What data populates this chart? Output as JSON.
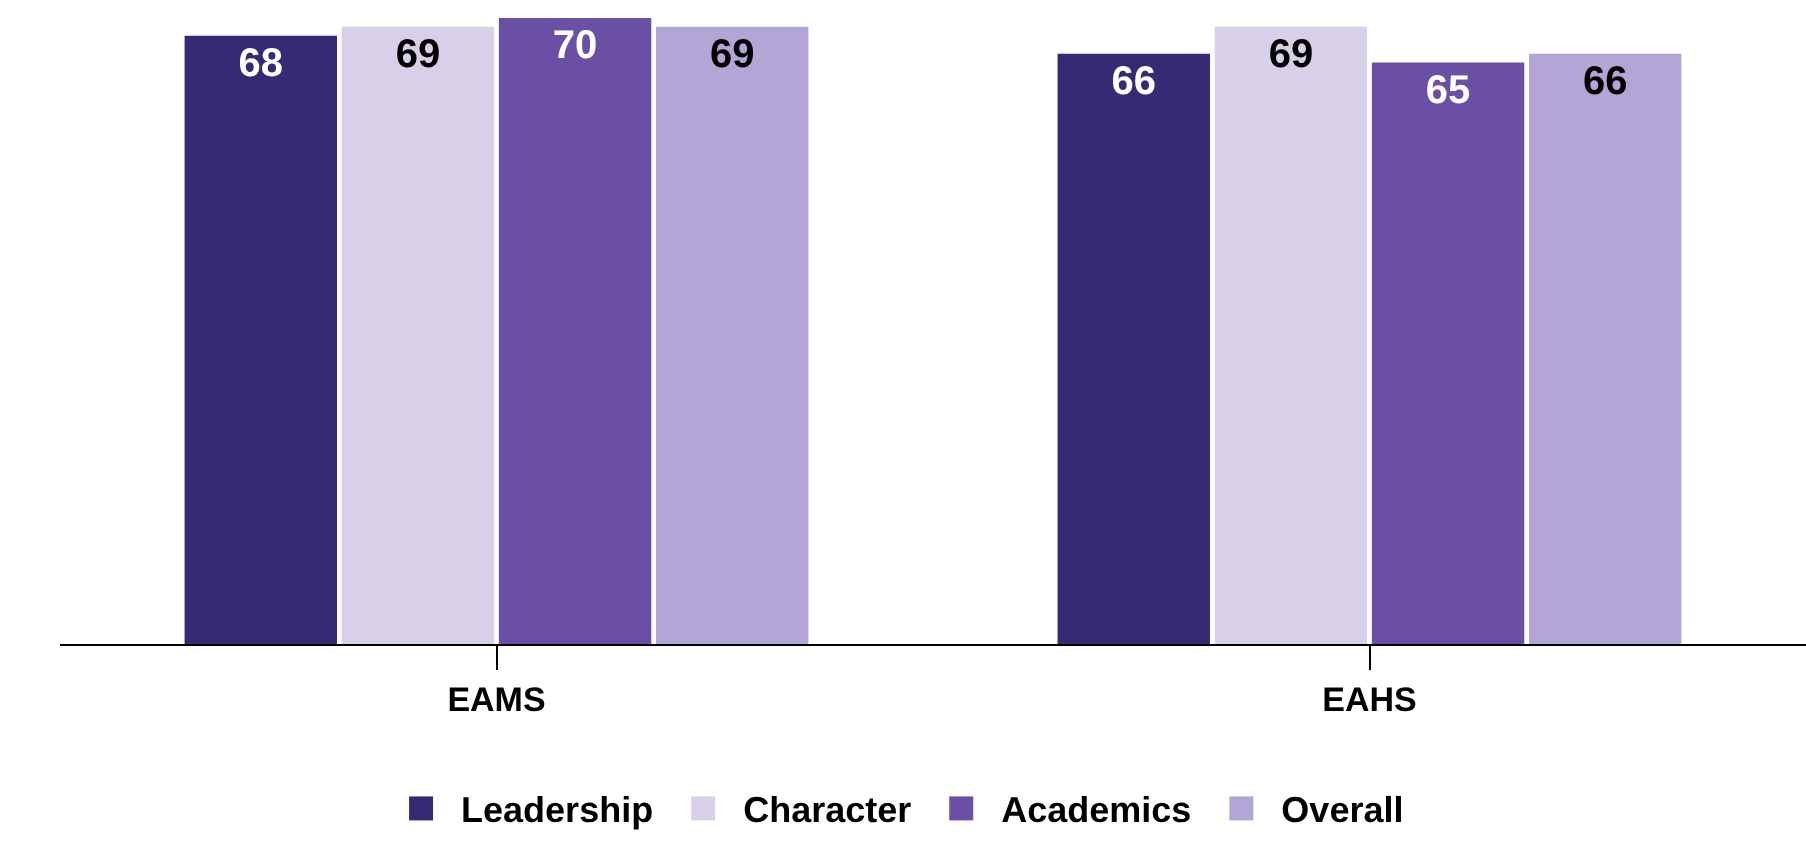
{
  "chart_data": {
    "type": "bar",
    "categories": [
      "EAMS",
      "EAHS"
    ],
    "series": [
      {
        "name": "Leadership",
        "color": "#352a73",
        "values": [
          68,
          66
        ]
      },
      {
        "name": "Character",
        "color": "#d8d0e8",
        "values": [
          69,
          69
        ]
      },
      {
        "name": "Academics",
        "color": "#6a4fa5",
        "values": [
          70,
          65
        ]
      },
      {
        "name": "Overall",
        "color": "#b3a6d6",
        "values": [
          69,
          66
        ]
      }
    ],
    "ylim": [
      0,
      72
    ],
    "data_labels": true,
    "legend": "bottom",
    "tick_labels": "x"
  }
}
